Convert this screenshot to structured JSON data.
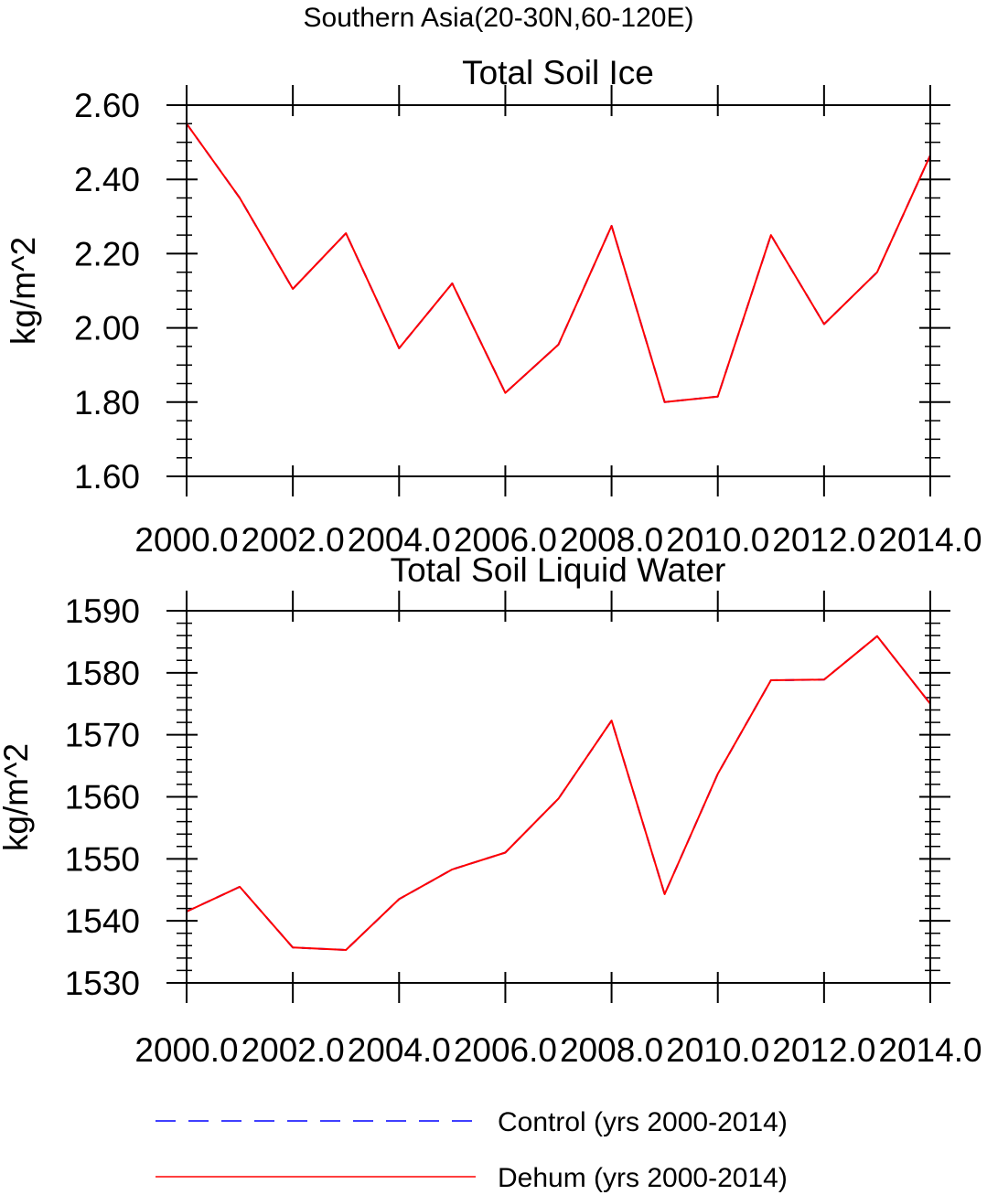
{
  "figure": {
    "suptitle": "Southern Asia(20-30N,60-120E)"
  },
  "legend": {
    "entries": [
      {
        "label": "Control (yrs 2000-2014)",
        "color": "#0000ff",
        "style": "dashed"
      },
      {
        "label": "Dehum (yrs 2000-2014)",
        "color": "#ff0000",
        "style": "solid"
      }
    ]
  },
  "chart_data": [
    {
      "type": "line",
      "title": "Total Soil Ice",
      "xlabel": "",
      "ylabel": "kg/m^2",
      "x": [
        2000,
        2001,
        2002,
        2003,
        2004,
        2005,
        2006,
        2007,
        2008,
        2009,
        2010,
        2011,
        2012,
        2013,
        2014
      ],
      "xlim": [
        2000,
        2014
      ],
      "ylim": [
        1.6,
        2.6
      ],
      "xticks": [
        2000,
        2002,
        2004,
        2006,
        2008,
        2010,
        2012,
        2014
      ],
      "xtick_labels": [
        "2000.0",
        "2002.0",
        "2004.0",
        "2006.0",
        "2008.0",
        "2010.0",
        "2012.0",
        "2014.0"
      ],
      "yticks": [
        1.6,
        1.8,
        2.0,
        2.2,
        2.4,
        2.6
      ],
      "ytick_labels": [
        "1.60",
        "1.80",
        "2.00",
        "2.20",
        "2.40",
        "2.60"
      ],
      "grid": false,
      "series": [
        {
          "name": "Control (yrs 2000-2014)",
          "color": "#0000ff",
          "style": "dashed",
          "values": [
            2.55,
            2.35,
            2.105,
            2.255,
            1.945,
            2.12,
            1.825,
            1.955,
            2.275,
            1.8,
            1.815,
            2.25,
            2.01,
            2.15,
            2.465
          ]
        },
        {
          "name": "Dehum (yrs 2000-2014)",
          "color": "#ff0000",
          "style": "solid",
          "values": [
            2.55,
            2.35,
            2.105,
            2.255,
            1.945,
            2.12,
            1.825,
            1.955,
            2.275,
            1.8,
            1.815,
            2.25,
            2.01,
            2.15,
            2.465
          ]
        }
      ]
    },
    {
      "type": "line",
      "title": "Total Soil Liquid Water",
      "xlabel": "",
      "ylabel": "kg/m^2",
      "x": [
        2000,
        2001,
        2002,
        2003,
        2004,
        2005,
        2006,
        2007,
        2008,
        2009,
        2010,
        2011,
        2012,
        2013,
        2014
      ],
      "xlim": [
        2000,
        2014
      ],
      "ylim": [
        1530,
        1590
      ],
      "xticks": [
        2000,
        2002,
        2004,
        2006,
        2008,
        2010,
        2012,
        2014
      ],
      "xtick_labels": [
        "2000.0",
        "2002.0",
        "2004.0",
        "2006.0",
        "2008.0",
        "2010.0",
        "2012.0",
        "2014.0"
      ],
      "yticks": [
        1530,
        1540,
        1550,
        1560,
        1570,
        1580,
        1590
      ],
      "ytick_labels": [
        "1530",
        "1540",
        "1550",
        "1560",
        "1570",
        "1580",
        "1590"
      ],
      "grid": false,
      "series": [
        {
          "name": "Control (yrs 2000-2014)",
          "color": "#0000ff",
          "style": "dashed",
          "values": [
            1541.5,
            1545.5,
            1535.7,
            1535.3,
            1543.5,
            1548.3,
            1551,
            1559.7,
            1572.3,
            1544.3,
            1563.7,
            1578.8,
            1578.9,
            1585.9,
            1575
          ]
        },
        {
          "name": "Dehum (yrs 2000-2014)",
          "color": "#ff0000",
          "style": "solid",
          "values": [
            1541.5,
            1545.5,
            1535.7,
            1535.3,
            1543.5,
            1548.3,
            1551,
            1559.7,
            1572.3,
            1544.3,
            1563.7,
            1578.8,
            1578.9,
            1585.9,
            1575
          ]
        }
      ]
    }
  ]
}
